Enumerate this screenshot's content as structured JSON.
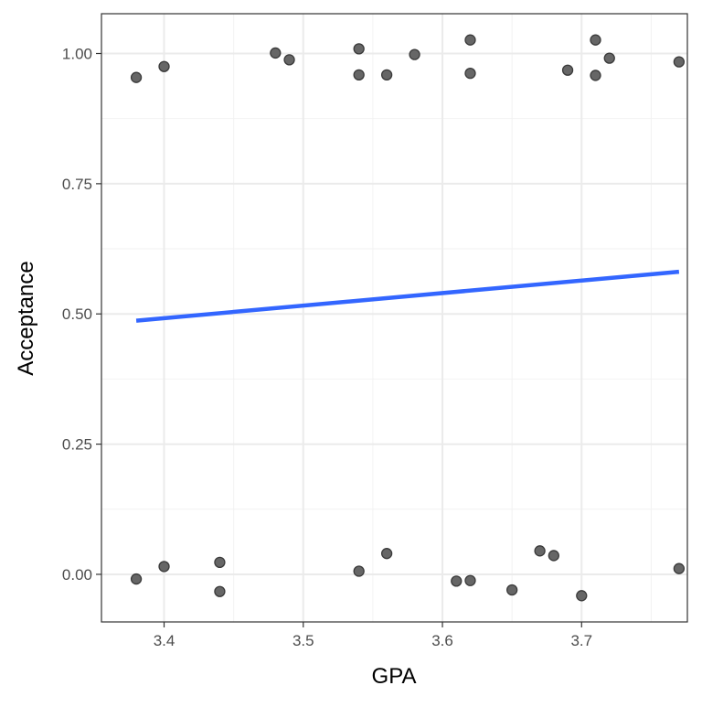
{
  "chart_data": {
    "type": "scatter",
    "xlabel": "GPA",
    "ylabel": "Acceptance",
    "xlim": [
      3.355,
      3.776
    ],
    "ylim": [
      -0.0914,
      1.0764
    ],
    "x_ticks": [
      3.4,
      3.5,
      3.6,
      3.7
    ],
    "x_tick_labels": [
      "3.4",
      "3.5",
      "3.6",
      "3.7"
    ],
    "y_ticks": [
      0.0,
      0.25,
      0.5,
      0.75,
      1.0
    ],
    "y_tick_labels": [
      "0.00",
      "0.25",
      "0.50",
      "0.75",
      "1.00"
    ],
    "grid": true,
    "legend": "none",
    "colors": {
      "points": "#666666",
      "fit_line": "#3366ff"
    },
    "points": [
      {
        "x": 3.38,
        "y": 0.954
      },
      {
        "x": 3.4,
        "y": 0.975
      },
      {
        "x": 3.48,
        "y": 1.001
      },
      {
        "x": 3.49,
        "y": 0.988
      },
      {
        "x": 3.54,
        "y": 1.009
      },
      {
        "x": 3.54,
        "y": 0.959
      },
      {
        "x": 3.56,
        "y": 0.959
      },
      {
        "x": 3.58,
        "y": 0.998
      },
      {
        "x": 3.62,
        "y": 1.026
      },
      {
        "x": 3.62,
        "y": 0.962
      },
      {
        "x": 3.69,
        "y": 0.968
      },
      {
        "x": 3.71,
        "y": 1.026
      },
      {
        "x": 3.71,
        "y": 0.958
      },
      {
        "x": 3.72,
        "y": 0.991
      },
      {
        "x": 3.77,
        "y": 0.984
      },
      {
        "x": 3.38,
        "y": -0.009
      },
      {
        "x": 3.4,
        "y": 0.015
      },
      {
        "x": 3.44,
        "y": 0.023
      },
      {
        "x": 3.44,
        "y": -0.033
      },
      {
        "x": 3.54,
        "y": 0.006
      },
      {
        "x": 3.56,
        "y": 0.04
      },
      {
        "x": 3.61,
        "y": -0.013
      },
      {
        "x": 3.62,
        "y": -0.012
      },
      {
        "x": 3.65,
        "y": -0.03
      },
      {
        "x": 3.67,
        "y": 0.045
      },
      {
        "x": 3.68,
        "y": 0.036
      },
      {
        "x": 3.7,
        "y": -0.041
      },
      {
        "x": 3.77,
        "y": 0.011
      }
    ],
    "fit_line": {
      "x": [
        3.38,
        3.77
      ],
      "y": [
        0.487,
        0.581
      ]
    }
  }
}
